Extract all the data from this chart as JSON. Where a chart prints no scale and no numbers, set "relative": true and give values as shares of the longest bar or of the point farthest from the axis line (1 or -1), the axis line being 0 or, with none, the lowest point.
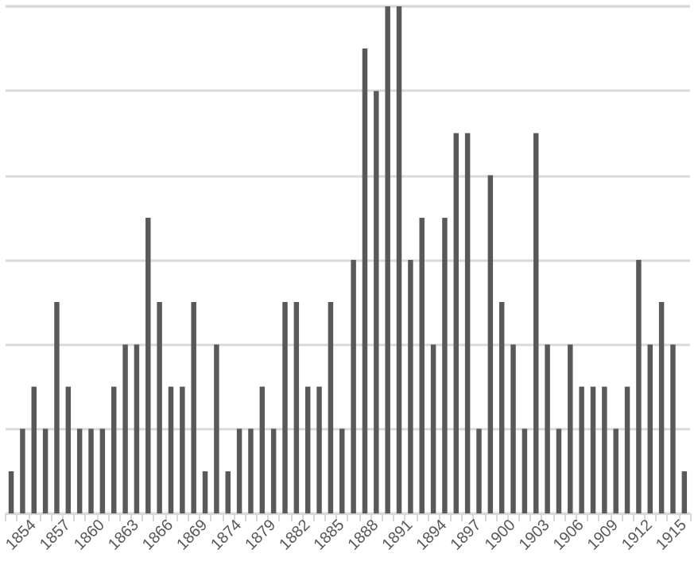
{
  "chart_data": {
    "type": "bar",
    "relative": true,
    "grid": "y",
    "color": "#595959",
    "categories": [
      null,
      null,
      "1854",
      null,
      null,
      "1857",
      null,
      null,
      "1860",
      null,
      null,
      "1863",
      null,
      null,
      "1866",
      null,
      null,
      "1869",
      null,
      null,
      "1874",
      null,
      null,
      "1879",
      null,
      null,
      "1882",
      null,
      null,
      "1885",
      null,
      null,
      "1888",
      null,
      null,
      "1891",
      null,
      null,
      "1894",
      null,
      null,
      "1897",
      null,
      null,
      "1900",
      null,
      null,
      "1903",
      null,
      null,
      "1906",
      null,
      null,
      "1909",
      null,
      null,
      "1912",
      null,
      null,
      "1915"
    ],
    "values": [
      0.083,
      0.167,
      0.25,
      0.167,
      0.417,
      0.25,
      0.167,
      0.167,
      0.167,
      0.25,
      0.333,
      0.333,
      0.583,
      0.417,
      0.25,
      0.25,
      0.417,
      0.083,
      0.333,
      0.083,
      0.167,
      0.167,
      0.25,
      0.167,
      0.417,
      0.417,
      0.25,
      0.25,
      0.417,
      0.167,
      0.5,
      0.917,
      0.833,
      1,
      1,
      0.5,
      0.583,
      0.333,
      0.583,
      0.75,
      0.75,
      0.167,
      0.667,
      0.417,
      0.333,
      0.167,
      0.75,
      0.333,
      0.167,
      0.333,
      0.25,
      0.25,
      0.25,
      0.167,
      0.25,
      0.5,
      0.333,
      0.417,
      0.333,
      0.083
    ]
  }
}
